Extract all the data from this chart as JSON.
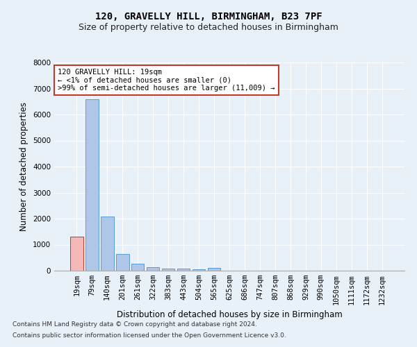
{
  "title1": "120, GRAVELLY HILL, BIRMINGHAM, B23 7PF",
  "title2": "Size of property relative to detached houses in Birmingham",
  "xlabel": "Distribution of detached houses by size in Birmingham",
  "ylabel": "Number of detached properties",
  "categories": [
    "19sqm",
    "79sqm",
    "140sqm",
    "201sqm",
    "261sqm",
    "322sqm",
    "383sqm",
    "443sqm",
    "504sqm",
    "565sqm",
    "625sqm",
    "686sqm",
    "747sqm",
    "807sqm",
    "868sqm",
    "929sqm",
    "990sqm",
    "1050sqm",
    "1111sqm",
    "1172sqm",
    "1232sqm"
  ],
  "values": [
    1300,
    6600,
    2080,
    640,
    270,
    130,
    90,
    75,
    65,
    100,
    0,
    0,
    0,
    0,
    0,
    0,
    0,
    0,
    0,
    0,
    0
  ],
  "bar_color": "#aec6e8",
  "bar_edge_color": "#5b9bd5",
  "highlight_bar_index": 0,
  "highlight_color": "#f4b8b8",
  "highlight_edge_color": "#c0392b",
  "annotation_line1": "120 GRAVELLY HILL: 19sqm",
  "annotation_line2": "← <1% of detached houses are smaller (0)",
  "annotation_line3": ">99% of semi-detached houses are larger (11,009) →",
  "annotation_box_edge_color": "#c0392b",
  "ylim": [
    0,
    8000
  ],
  "yticks": [
    0,
    1000,
    2000,
    3000,
    4000,
    5000,
    6000,
    7000,
    8000
  ],
  "footnote1": "Contains HM Land Registry data © Crown copyright and database right 2024.",
  "footnote2": "Contains public sector information licensed under the Open Government Licence v3.0.",
  "bg_color": "#e8f0f8",
  "plot_bg_color": "#e8f0f8",
  "grid_color": "#ffffff",
  "title_fontsize": 10,
  "subtitle_fontsize": 9,
  "axis_label_fontsize": 8.5,
  "tick_fontsize": 7.5,
  "annotation_fontsize": 7.5,
  "footnote_fontsize": 6.5
}
